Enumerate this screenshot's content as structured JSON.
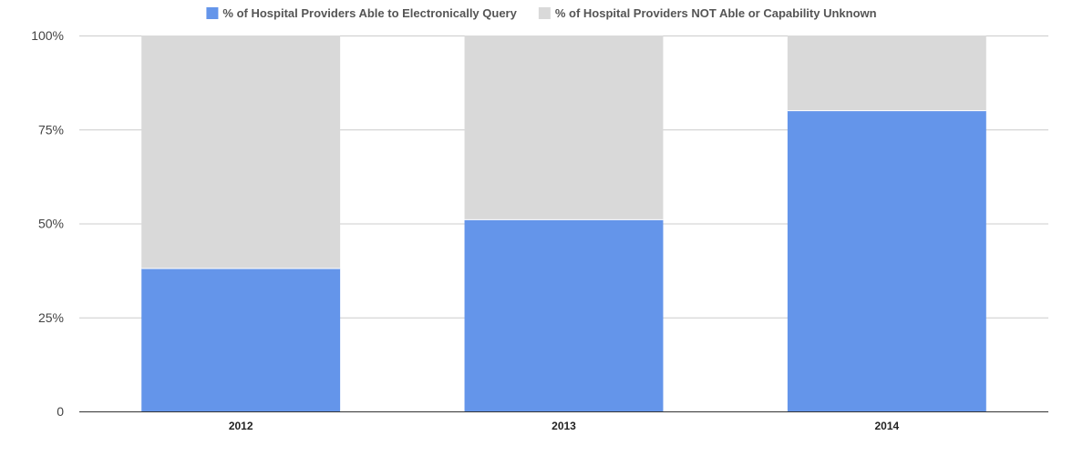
{
  "chart_data": {
    "type": "bar",
    "stacked": true,
    "categories": [
      "2012",
      "2013",
      "2014"
    ],
    "series": [
      {
        "name": "% of Hospital Providers Able to Electronically Query",
        "values": [
          38,
          51,
          80
        ],
        "color": "#6495ea"
      },
      {
        "name": "% of Hospital Providers NOT Able or Capability Unknown",
        "values": [
          62,
          49,
          20
        ],
        "color": "#d9d9d9"
      }
    ],
    "yticks": [
      {
        "value": 0,
        "label": "0"
      },
      {
        "value": 25,
        "label": "25%"
      },
      {
        "value": 50,
        "label": "50%"
      },
      {
        "value": 75,
        "label": "75%"
      },
      {
        "value": 100,
        "label": "100%"
      }
    ],
    "ylim": [
      0,
      100
    ],
    "legend_position": "top",
    "grid": true,
    "grid_color": "#cccccc",
    "axis_color": "#333333"
  }
}
